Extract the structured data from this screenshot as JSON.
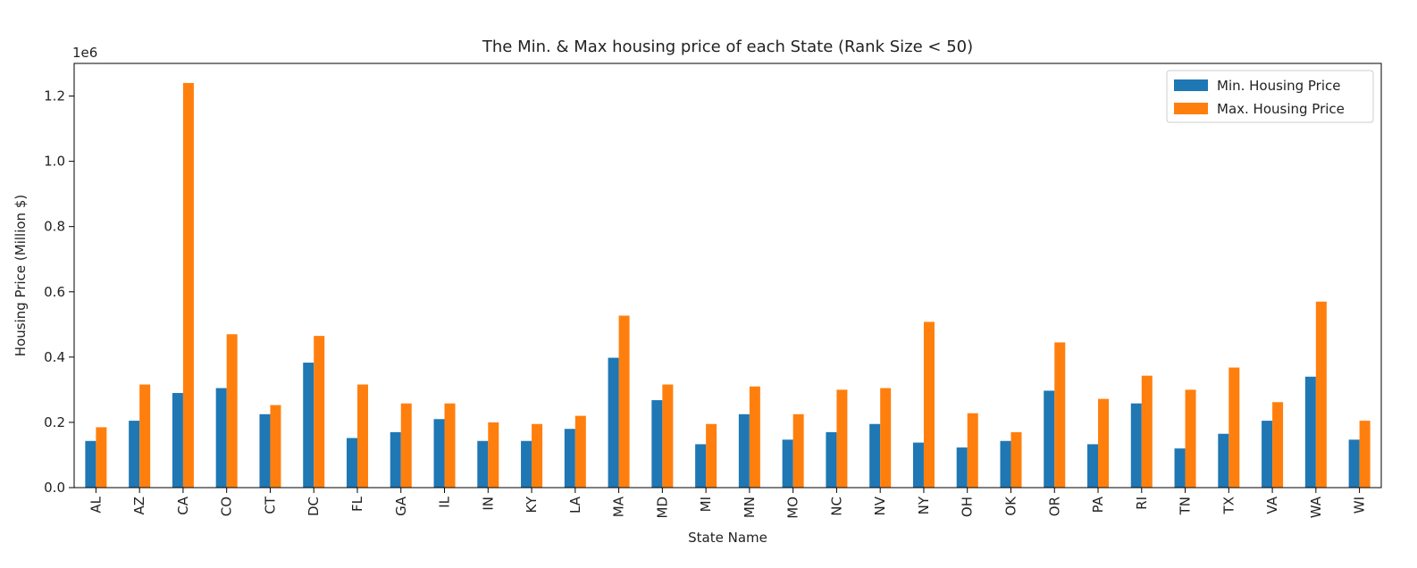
{
  "chart_data": {
    "type": "bar",
    "title": "The Min. & Max housing price of each State (Rank Size < 50)",
    "xlabel": "State Name",
    "ylabel": "Housing Price (Million $)",
    "y_offset_label": "1e6",
    "ylim": [
      0,
      1300000
    ],
    "yticks": [
      0,
      200000,
      400000,
      600000,
      800000,
      1000000,
      1200000
    ],
    "ytick_labels": [
      "0.0",
      "0.2",
      "0.4",
      "0.6",
      "0.8",
      "1.0",
      "1.2"
    ],
    "grid": false,
    "legend_position": "top-right",
    "categories": [
      "AL",
      "AZ",
      "CA",
      "CO",
      "CT",
      "DC",
      "FL",
      "GA",
      "IL",
      "IN",
      "KY",
      "LA",
      "MA",
      "MD",
      "MI",
      "MN",
      "MO",
      "NC",
      "NV",
      "NY",
      "OH",
      "OK",
      "OR",
      "PA",
      "RI",
      "TN",
      "TX",
      "VA",
      "WA",
      "WI"
    ],
    "series": [
      {
        "name": "Min. Housing Price",
        "color": "#1f77b4",
        "values": [
          143000,
          205000,
          290000,
          305000,
          225000,
          383000,
          152000,
          170000,
          210000,
          143000,
          143000,
          180000,
          398000,
          268000,
          133000,
          225000,
          147000,
          170000,
          195000,
          138000,
          123000,
          143000,
          297000,
          133000,
          258000,
          120000,
          165000,
          205000,
          340000,
          147000
        ]
      },
      {
        "name": "Max. Housing Price",
        "color": "#ff7f0e",
        "values": [
          185000,
          316000,
          1240000,
          470000,
          253000,
          465000,
          316000,
          258000,
          258000,
          200000,
          195000,
          220000,
          527000,
          316000,
          195000,
          310000,
          225000,
          300000,
          305000,
          508000,
          228000,
          170000,
          445000,
          272000,
          343000,
          300000,
          368000,
          262000,
          570000,
          205000
        ]
      }
    ]
  }
}
